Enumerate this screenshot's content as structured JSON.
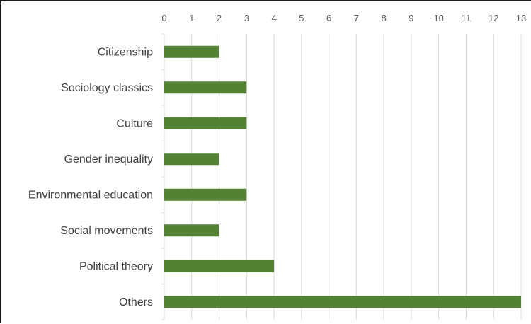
{
  "chart_data": {
    "type": "bar",
    "orientation": "horizontal",
    "categories": [
      "Citizenship",
      "Sociology classics",
      "Culture",
      "Gender inequality",
      "Environmental education",
      "Social movements",
      "Political theory",
      "Others"
    ],
    "values": [
      2,
      3,
      3,
      2,
      3,
      2,
      4,
      13
    ],
    "xlim": [
      0,
      13
    ],
    "xticks": [
      "0",
      "1",
      "2",
      "3",
      "4",
      "5",
      "6",
      "7",
      "8",
      "9",
      "10",
      "11",
      "12",
      "13"
    ],
    "x_axis_position": "top",
    "grid": true,
    "legend": "none",
    "title": "",
    "xlabel": "",
    "ylabel": "",
    "colors": {
      "bar": "#548235",
      "grid": "#d9d9d9",
      "text": "#404040"
    }
  }
}
